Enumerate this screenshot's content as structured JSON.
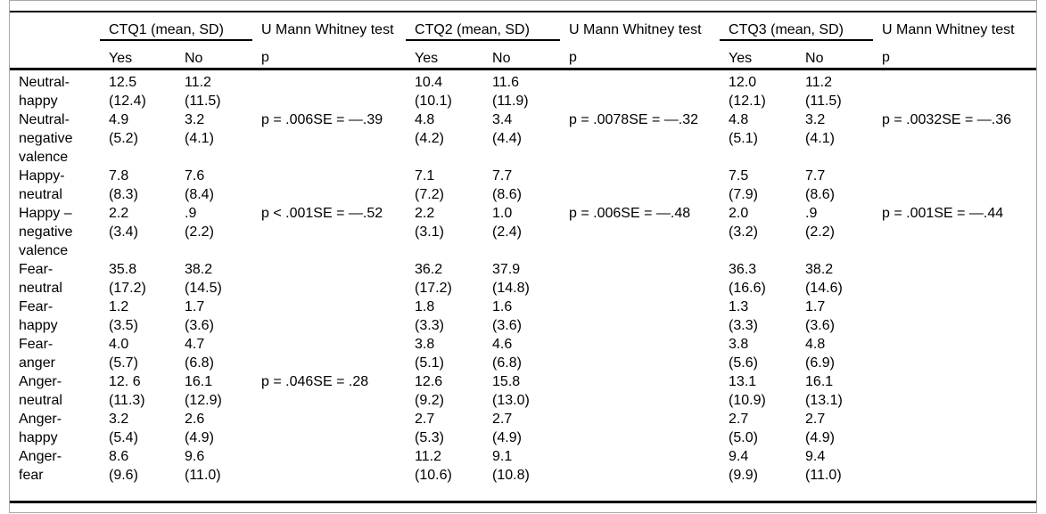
{
  "table": {
    "groups": [
      {
        "label": "CTQ1 (mean, SD)",
        "test_label": "U Mann Whitney test"
      },
      {
        "label": "CTQ2 (mean, SD)",
        "test_label": "U Mann Whitney test"
      },
      {
        "label": "CTQ3 (mean, SD)",
        "test_label": "U Mann Whitney test"
      }
    ],
    "subheaders": {
      "yes": "Yes",
      "no": "No",
      "p": "p"
    },
    "rows": [
      {
        "label": "Neutral-happy",
        "groups": [
          {
            "yes_mean": "12.5",
            "yes_sd": "(12.4)",
            "no_mean": "11.2",
            "no_sd": "(11.5)",
            "p": ""
          },
          {
            "yes_mean": "10.4",
            "yes_sd": "(10.1)",
            "no_mean": "11.6",
            "no_sd": "(11.9)",
            "p": ""
          },
          {
            "yes_mean": "12.0",
            "yes_sd": "(12.1)",
            "no_mean": "11.2",
            "no_sd": "(11.5)",
            "p": ""
          }
        ]
      },
      {
        "label": "Neutral-negative valence",
        "groups": [
          {
            "yes_mean": "4.9",
            "yes_sd": "(5.2)",
            "no_mean": "3.2",
            "no_sd": "(4.1)",
            "p": "p = .006SE = —.39"
          },
          {
            "yes_mean": "4.8",
            "yes_sd": "(4.2)",
            "no_mean": "3.4",
            "no_sd": "(4.4)",
            "p": "p = .0078SE = —.32"
          },
          {
            "yes_mean": "4.8",
            "yes_sd": "(5.1)",
            "no_mean": "3.2",
            "no_sd": "(4.1)",
            "p": "p = .0032SE = —.36"
          }
        ]
      },
      {
        "label": "Happy-neutral",
        "groups": [
          {
            "yes_mean": "7.8",
            "yes_sd": "(8.3)",
            "no_mean": "7.6",
            "no_sd": "(8.4)",
            "p": ""
          },
          {
            "yes_mean": "7.1",
            "yes_sd": "(7.2)",
            "no_mean": "7.7",
            "no_sd": "(8.6)",
            "p": ""
          },
          {
            "yes_mean": "7.5",
            "yes_sd": "(7.9)",
            "no_mean": "7.7",
            "no_sd": "(8.6)",
            "p": ""
          }
        ]
      },
      {
        "label": "Happy – negative valence",
        "groups": [
          {
            "yes_mean": "2.2",
            "yes_sd": "(3.4)",
            "no_mean": ".9",
            "no_sd": "(2.2)",
            "p": "p < .001SE = —.52"
          },
          {
            "yes_mean": "2.2",
            "yes_sd": "(3.1)",
            "no_mean": "1.0",
            "no_sd": "(2.4)",
            "p": "p = .006SE = —.48"
          },
          {
            "yes_mean": "2.0",
            "yes_sd": "(3.2)",
            "no_mean": ".9",
            "no_sd": "(2.2)",
            "p": "p = .001SE = —.44"
          }
        ]
      },
      {
        "label": "Fear-neutral",
        "groups": [
          {
            "yes_mean": "35.8",
            "yes_sd": "(17.2)",
            "no_mean": "38.2",
            "no_sd": "(14.5)",
            "p": ""
          },
          {
            "yes_mean": "36.2",
            "yes_sd": "(17.2)",
            "no_mean": "37.9",
            "no_sd": "(14.8)",
            "p": ""
          },
          {
            "yes_mean": "36.3",
            "yes_sd": "(16.6)",
            "no_mean": "38.2",
            "no_sd": "(14.6)",
            "p": ""
          }
        ]
      },
      {
        "label": "Fear-happy",
        "groups": [
          {
            "yes_mean": "1.2",
            "yes_sd": "(3.5)",
            "no_mean": "1.7",
            "no_sd": "(3.6)",
            "p": ""
          },
          {
            "yes_mean": "1.8",
            "yes_sd": "(3.3)",
            "no_mean": "1.6",
            "no_sd": "(3.6)",
            "p": ""
          },
          {
            "yes_mean": "1.3",
            "yes_sd": "(3.3)",
            "no_mean": "1.7",
            "no_sd": "(3.6)",
            "p": ""
          }
        ]
      },
      {
        "label": "Fear-anger",
        "groups": [
          {
            "yes_mean": "4.0",
            "yes_sd": "(5.7)",
            "no_mean": "4.7",
            "no_sd": "(6.8)",
            "p": ""
          },
          {
            "yes_mean": "3.8",
            "yes_sd": "(5.1)",
            "no_mean": "4.6",
            "no_sd": "(6.8)",
            "p": ""
          },
          {
            "yes_mean": "3.8",
            "yes_sd": "(5.6)",
            "no_mean": "4.8",
            "no_sd": "(6.9)",
            "p": ""
          }
        ]
      },
      {
        "label": "Anger-neutral",
        "groups": [
          {
            "yes_mean": "12. 6",
            "yes_sd": "(11.3)",
            "no_mean": "16.1",
            "no_sd": "(12.9)",
            "p": "p = .046SE = .28"
          },
          {
            "yes_mean": "12.6",
            "yes_sd": "(9.2)",
            "no_mean": "15.8",
            "no_sd": "(13.0)",
            "p": ""
          },
          {
            "yes_mean": "13.1",
            "yes_sd": "(10.9)",
            "no_mean": "16.1",
            "no_sd": "(13.1)",
            "p": ""
          }
        ]
      },
      {
        "label": "Anger-happy",
        "groups": [
          {
            "yes_mean": "3.2",
            "yes_sd": "(5.4)",
            "no_mean": "2.6",
            "no_sd": "(4.9)",
            "p": ""
          },
          {
            "yes_mean": "2.7",
            "yes_sd": "(5.3)",
            "no_mean": "2.7",
            "no_sd": "(4.9)",
            "p": ""
          },
          {
            "yes_mean": "2.7",
            "yes_sd": "(5.0)",
            "no_mean": "2.7",
            "no_sd": "(4.9)",
            "p": ""
          }
        ]
      },
      {
        "label": "Anger-fear",
        "groups": [
          {
            "yes_mean": "8.6",
            "yes_sd": "(9.6)",
            "no_mean": "9.6",
            "no_sd": "(11.0)",
            "p": ""
          },
          {
            "yes_mean": "11.2",
            "yes_sd": "(10.6)",
            "no_mean": "9.1",
            "no_sd": "(10.8)",
            "p": ""
          },
          {
            "yes_mean": "9.4",
            "yes_sd": "(9.9)",
            "no_mean": "9.4",
            "no_sd": "(11.0)",
            "p": ""
          }
        ]
      }
    ]
  }
}
